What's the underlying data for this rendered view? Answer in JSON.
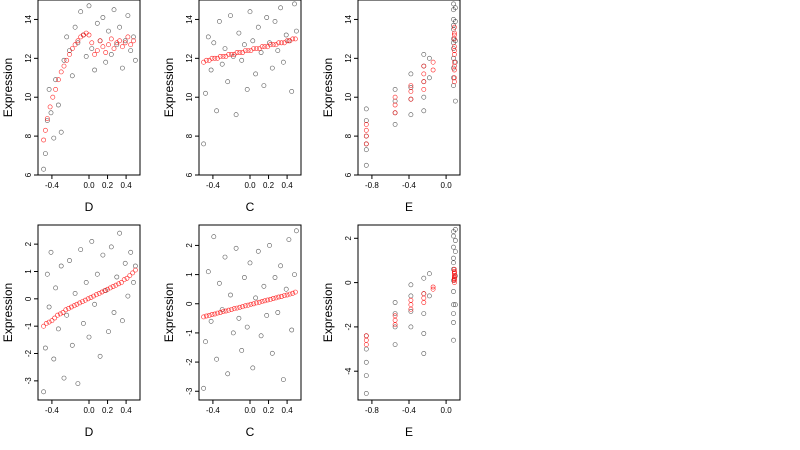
{
  "figure": {
    "colors": {
      "observed": "#000000",
      "fitted": "#ff0000",
      "background": "#ffffff"
    }
  },
  "chart_data": [
    {
      "type": "scatter",
      "row": "top",
      "xlabel": "D",
      "ylabel": "Expression",
      "xlim": [
        -0.55,
        0.55
      ],
      "ylim": [
        6,
        15
      ],
      "xticks": [
        -0.4,
        0.0,
        0.2,
        0.4
      ],
      "xtick_labels": [
        "-0.4",
        "0.0",
        "0.2",
        "0.4"
      ],
      "yticks": [
        6,
        8,
        10,
        12,
        14
      ],
      "ytick_labels": [
        "6",
        "8",
        "10",
        "12",
        "14"
      ],
      "grid": false,
      "legend": "none",
      "series": [
        {
          "color": "#000000",
          "x": [
            -0.49,
            -0.47,
            -0.45,
            -0.43,
            -0.41,
            -0.38,
            -0.36,
            -0.33,
            -0.3,
            -0.27,
            -0.24,
            -0.21,
            -0.18,
            -0.15,
            -0.12,
            -0.09,
            -0.06,
            -0.03,
            0.0,
            0.03,
            0.06,
            0.09,
            0.12,
            0.15,
            0.18,
            0.21,
            0.24,
            0.27,
            0.3,
            0.33,
            0.36,
            0.39,
            0.42,
            0.45,
            0.48,
            0.5
          ],
          "y": [
            6.3,
            7.1,
            8.8,
            10.4,
            9.2,
            7.9,
            10.9,
            9.6,
            8.2,
            11.9,
            13.1,
            12.4,
            11.1,
            13.6,
            12.8,
            14.4,
            13.2,
            12.1,
            14.7,
            12.5,
            11.4,
            13.8,
            12.9,
            14.1,
            11.8,
            13.4,
            12.2,
            14.5,
            12.7,
            13.6,
            11.5,
            12.9,
            14.2,
            12.4,
            13.1,
            11.9
          ]
        },
        {
          "color": "#ff0000",
          "x": [
            -0.49,
            -0.47,
            -0.45,
            -0.42,
            -0.39,
            -0.36,
            -0.33,
            -0.3,
            -0.27,
            -0.24,
            -0.21,
            -0.18,
            -0.15,
            -0.12,
            -0.09,
            -0.06,
            -0.03,
            0.0,
            0.03,
            0.06,
            0.09,
            0.12,
            0.15,
            0.18,
            0.21,
            0.24,
            0.27,
            0.3,
            0.33,
            0.36,
            0.39,
            0.42,
            0.45,
            0.48
          ],
          "y": [
            7.8,
            8.3,
            8.9,
            9.5,
            10.0,
            10.4,
            10.9,
            11.3,
            11.6,
            11.9,
            12.2,
            12.5,
            12.7,
            12.9,
            13.1,
            13.2,
            13.3,
            13.2,
            12.8,
            12.2,
            12.4,
            12.9,
            12.6,
            12.3,
            12.7,
            13.0,
            12.5,
            12.8,
            12.9,
            12.6,
            12.8,
            13.1,
            12.7,
            12.9
          ]
        }
      ]
    },
    {
      "type": "scatter",
      "row": "top",
      "xlabel": "C",
      "ylabel": "Expression",
      "xlim": [
        -0.55,
        0.55
      ],
      "ylim": [
        6,
        15
      ],
      "xticks": [
        -0.4,
        0.0,
        0.2,
        0.4
      ],
      "xtick_labels": [
        "-0.4",
        "0.0",
        "0.2",
        "0.4"
      ],
      "yticks": [
        6,
        8,
        10,
        12,
        14
      ],
      "ytick_labels": [
        "6",
        "8",
        "10",
        "12",
        "14"
      ],
      "grid": false,
      "legend": "none",
      "series": [
        {
          "color": "#000000",
          "x": [
            -0.5,
            -0.48,
            -0.45,
            -0.42,
            -0.39,
            -0.36,
            -0.33,
            -0.3,
            -0.27,
            -0.24,
            -0.21,
            -0.18,
            -0.15,
            -0.12,
            -0.09,
            -0.06,
            -0.03,
            0.0,
            0.03,
            0.06,
            0.09,
            0.12,
            0.15,
            0.18,
            0.21,
            0.24,
            0.27,
            0.3,
            0.33,
            0.36,
            0.39,
            0.42,
            0.45,
            0.48,
            0.5
          ],
          "y": [
            7.6,
            10.2,
            13.1,
            11.4,
            12.8,
            9.3,
            13.9,
            11.7,
            12.5,
            10.8,
            14.2,
            12.1,
            9.1,
            13.3,
            11.9,
            12.7,
            10.4,
            14.4,
            12.9,
            11.2,
            13.6,
            12.3,
            10.6,
            14.1,
            12.8,
            11.5,
            13.9,
            12.4,
            14.6,
            11.8,
            13.2,
            12.9,
            10.3,
            14.8,
            13.4
          ]
        },
        {
          "color": "#ff0000",
          "x": [
            -0.5,
            -0.47,
            -0.44,
            -0.41,
            -0.38,
            -0.35,
            -0.32,
            -0.29,
            -0.26,
            -0.23,
            -0.2,
            -0.17,
            -0.14,
            -0.11,
            -0.08,
            -0.05,
            -0.02,
            0.01,
            0.04,
            0.07,
            0.1,
            0.13,
            0.16,
            0.19,
            0.22,
            0.25,
            0.28,
            0.31,
            0.34,
            0.37,
            0.4,
            0.43,
            0.46,
            0.49
          ],
          "y": [
            11.8,
            11.9,
            11.9,
            12.0,
            12.0,
            12.0,
            12.1,
            12.1,
            12.1,
            12.2,
            12.2,
            12.2,
            12.3,
            12.3,
            12.3,
            12.4,
            12.4,
            12.4,
            12.5,
            12.5,
            12.5,
            12.6,
            12.6,
            12.6,
            12.7,
            12.7,
            12.7,
            12.8,
            12.8,
            12.8,
            12.9,
            12.9,
            13.0,
            13.0
          ]
        }
      ]
    },
    {
      "type": "scatter",
      "row": "top",
      "xlabel": "E",
      "ylabel": "Expression",
      "xlim": [
        -0.95,
        0.15
      ],
      "ylim": [
        6,
        15
      ],
      "xticks": [
        -0.8,
        -0.4,
        0.0
      ],
      "xtick_labels": [
        "-0.8",
        "-0.4",
        "0.0"
      ],
      "yticks": [
        6,
        8,
        10,
        12,
        14
      ],
      "ytick_labels": [
        "6",
        "8",
        "10",
        "12",
        "14"
      ],
      "grid": false,
      "legend": "none",
      "series": [
        {
          "color": "#000000",
          "x": [
            -0.86,
            -0.86,
            -0.86,
            -0.86,
            -0.86,
            -0.86,
            -0.55,
            -0.55,
            -0.55,
            -0.55,
            -0.38,
            -0.38,
            -0.38,
            -0.38,
            -0.24,
            -0.24,
            -0.24,
            -0.24,
            -0.24,
            -0.18,
            -0.18,
            0.08,
            0.08,
            0.08,
            0.08,
            0.08,
            0.08,
            0.08,
            0.08,
            0.08,
            0.08,
            0.08,
            0.08,
            0.1,
            0.1,
            0.1,
            0.1,
            0.1
          ],
          "y": [
            6.5,
            7.3,
            8.0,
            8.8,
            9.4,
            7.6,
            8.6,
            9.2,
            9.8,
            10.4,
            9.1,
            9.9,
            10.5,
            11.2,
            9.3,
            10.0,
            10.8,
            11.6,
            12.2,
            11.0,
            12.0,
            11.0,
            11.5,
            12.0,
            12.5,
            13.0,
            13.5,
            14.0,
            14.5,
            10.6,
            12.8,
            13.7,
            14.8,
            9.8,
            11.8,
            12.9,
            13.9,
            14.6
          ]
        },
        {
          "color": "#ff0000",
          "x": [
            -0.86,
            -0.86,
            -0.86,
            -0.86,
            -0.55,
            -0.55,
            -0.55,
            -0.38,
            -0.38,
            -0.38,
            -0.24,
            -0.24,
            -0.24,
            -0.24,
            -0.14,
            -0.14,
            0.09,
            0.09,
            0.09,
            0.09,
            0.09,
            0.09,
            0.09,
            0.09,
            0.09,
            0.09,
            0.09,
            0.09
          ],
          "y": [
            7.6,
            8.0,
            8.3,
            8.6,
            9.2,
            9.6,
            10.0,
            9.9,
            10.3,
            10.6,
            10.4,
            10.8,
            11.2,
            11.6,
            11.4,
            11.8,
            11.0,
            11.4,
            11.8,
            12.2,
            12.6,
            13.0,
            13.3,
            13.6,
            10.8,
            11.6,
            12.4,
            13.2
          ]
        }
      ]
    },
    {
      "type": "scatter",
      "row": "bottom",
      "xlabel": "D",
      "ylabel": "Expression",
      "xlim": [
        -0.55,
        0.55
      ],
      "ylim": [
        -3.7,
        2.7
      ],
      "xticks": [
        -0.4,
        0.0,
        0.2,
        0.4
      ],
      "xtick_labels": [
        "-0.4",
        "0.0",
        "0.2",
        "0.4"
      ],
      "yticks": [
        -3,
        -2,
        -1,
        0,
        1,
        2
      ],
      "ytick_labels": [
        "-3",
        "-2",
        "-1",
        "0",
        "1",
        "2"
      ],
      "grid": false,
      "legend": "none",
      "series": [
        {
          "color": "#000000",
          "x": [
            -0.49,
            -0.47,
            -0.45,
            -0.43,
            -0.41,
            -0.38,
            -0.36,
            -0.33,
            -0.3,
            -0.27,
            -0.24,
            -0.21,
            -0.18,
            -0.15,
            -0.12,
            -0.09,
            -0.06,
            -0.03,
            0.0,
            0.03,
            0.06,
            0.09,
            0.12,
            0.15,
            0.18,
            0.21,
            0.24,
            0.27,
            0.3,
            0.33,
            0.36,
            0.39,
            0.42,
            0.45,
            0.48,
            0.5
          ],
          "y": [
            -3.4,
            -1.8,
            0.9,
            -0.3,
            1.7,
            -2.2,
            0.4,
            -1.1,
            1.2,
            -2.9,
            -0.6,
            1.4,
            -1.7,
            0.2,
            -3.1,
            1.8,
            -0.9,
            0.6,
            -1.4,
            2.1,
            -0.2,
            0.9,
            -2.1,
            1.6,
            0.3,
            -1.2,
            1.9,
            -0.5,
            0.8,
            2.4,
            -0.8,
            1.3,
            0.1,
            1.7,
            0.6,
            1.2
          ]
        },
        {
          "color": "#ff0000",
          "x": [
            -0.49,
            -0.46,
            -0.43,
            -0.4,
            -0.37,
            -0.34,
            -0.31,
            -0.28,
            -0.25,
            -0.22,
            -0.19,
            -0.16,
            -0.13,
            -0.1,
            -0.07,
            -0.04,
            -0.01,
            0.02,
            0.05,
            0.08,
            0.11,
            0.14,
            0.17,
            0.2,
            0.23,
            0.26,
            0.29,
            0.32,
            0.35,
            0.38,
            0.41,
            0.44,
            0.47,
            0.5
          ],
          "y": [
            -1.0,
            -0.9,
            -0.85,
            -0.8,
            -0.7,
            -0.6,
            -0.55,
            -0.5,
            -0.4,
            -0.35,
            -0.3,
            -0.25,
            -0.2,
            -0.15,
            -0.1,
            -0.05,
            0.0,
            0.05,
            0.1,
            0.15,
            0.2,
            0.25,
            0.3,
            0.35,
            0.4,
            0.45,
            0.5,
            0.55,
            0.6,
            0.7,
            0.75,
            0.85,
            0.95,
            1.05
          ]
        }
      ]
    },
    {
      "type": "scatter",
      "row": "bottom",
      "xlabel": "C",
      "ylabel": "Expression",
      "xlim": [
        -0.55,
        0.55
      ],
      "ylim": [
        -3.3,
        2.7
      ],
      "xticks": [
        -0.4,
        0.0,
        0.2,
        0.4
      ],
      "xtick_labels": [
        "-0.4",
        "0.0",
        "0.2",
        "0.4"
      ],
      "yticks": [
        -3,
        -2,
        -1,
        0,
        1,
        2
      ],
      "ytick_labels": [
        "-3",
        "-2",
        "-1",
        "0",
        "1",
        "2"
      ],
      "grid": false,
      "legend": "none",
      "series": [
        {
          "color": "#000000",
          "x": [
            -0.5,
            -0.48,
            -0.45,
            -0.42,
            -0.39,
            -0.36,
            -0.33,
            -0.3,
            -0.27,
            -0.24,
            -0.21,
            -0.18,
            -0.15,
            -0.12,
            -0.09,
            -0.06,
            -0.03,
            0.0,
            0.03,
            0.06,
            0.09,
            0.12,
            0.15,
            0.18,
            0.21,
            0.24,
            0.27,
            0.3,
            0.33,
            0.36,
            0.39,
            0.42,
            0.45,
            0.48,
            0.5
          ],
          "y": [
            -2.9,
            -1.3,
            1.1,
            -0.6,
            2.3,
            -1.9,
            0.7,
            -0.2,
            1.6,
            -2.4,
            0.3,
            -1.0,
            1.9,
            -0.5,
            -1.6,
            0.9,
            -0.8,
            1.4,
            -2.2,
            0.2,
            1.8,
            -1.1,
            0.6,
            -0.4,
            2.0,
            -1.7,
            0.9,
            -0.3,
            1.3,
            -2.6,
            0.5,
            2.2,
            -0.9,
            1.0,
            2.5
          ]
        },
        {
          "color": "#ff0000",
          "x": [
            -0.5,
            -0.47,
            -0.44,
            -0.41,
            -0.38,
            -0.35,
            -0.32,
            -0.29,
            -0.26,
            -0.23,
            -0.2,
            -0.17,
            -0.14,
            -0.11,
            -0.08,
            -0.05,
            -0.02,
            0.01,
            0.04,
            0.07,
            0.1,
            0.13,
            0.16,
            0.19,
            0.22,
            0.25,
            0.28,
            0.31,
            0.34,
            0.37,
            0.4,
            0.43,
            0.46,
            0.49
          ],
          "y": [
            -0.45,
            -0.42,
            -0.4,
            -0.37,
            -0.35,
            -0.32,
            -0.3,
            -0.27,
            -0.25,
            -0.22,
            -0.2,
            -0.17,
            -0.15,
            -0.12,
            -0.1,
            -0.07,
            -0.05,
            -0.02,
            0.0,
            0.03,
            0.05,
            0.08,
            0.1,
            0.13,
            0.15,
            0.18,
            0.2,
            0.23,
            0.25,
            0.28,
            0.3,
            0.33,
            0.36,
            0.4
          ]
        }
      ]
    },
    {
      "type": "scatter",
      "row": "bottom",
      "xlabel": "E",
      "ylabel": "Expression",
      "xlim": [
        -0.95,
        0.15
      ],
      "ylim": [
        -5.3,
        2.6
      ],
      "xticks": [
        -0.8,
        -0.4,
        0.0
      ],
      "xtick_labels": [
        "-0.8",
        "-0.4",
        "0.0"
      ],
      "yticks": [
        -4,
        -2,
        0,
        2
      ],
      "ytick_labels": [
        "-4",
        "-2",
        "0",
        "2"
      ],
      "grid": false,
      "legend": "none",
      "series": [
        {
          "color": "#000000",
          "x": [
            -0.86,
            -0.86,
            -0.86,
            -0.86,
            -0.86,
            -0.55,
            -0.55,
            -0.55,
            -0.55,
            -0.38,
            -0.38,
            -0.38,
            -0.38,
            -0.24,
            -0.24,
            -0.24,
            -0.24,
            -0.24,
            -0.18,
            -0.18,
            0.08,
            0.08,
            0.08,
            0.08,
            0.08,
            0.08,
            0.08,
            0.08,
            0.08,
            0.08,
            0.08,
            0.08,
            0.1,
            0.1,
            0.1,
            0.1,
            0.1
          ],
          "y": [
            -5.0,
            -4.2,
            -3.6,
            -3.0,
            -2.4,
            -2.8,
            -2.0,
            -1.4,
            -0.9,
            -2.0,
            -1.3,
            -0.6,
            -0.1,
            -3.2,
            -2.3,
            -1.4,
            -0.5,
            0.2,
            -0.6,
            0.4,
            -2.6,
            -1.8,
            -1.0,
            -0.4,
            0.1,
            0.6,
            1.1,
            1.6,
            2.1,
            -1.4,
            0.9,
            2.3,
            -1.0,
            0.3,
            1.4,
            1.9,
            2.4
          ]
        },
        {
          "color": "#ff0000",
          "x": [
            -0.86,
            -0.86,
            -0.86,
            -0.55,
            -0.55,
            -0.55,
            -0.38,
            -0.38,
            -0.38,
            -0.24,
            -0.24,
            -0.24,
            -0.14,
            -0.14,
            0.09,
            0.09,
            0.09,
            0.09,
            0.09,
            0.09,
            0.09,
            0.09,
            0.09,
            0.09
          ],
          "y": [
            -2.8,
            -2.6,
            -2.4,
            -1.9,
            -1.7,
            -1.5,
            -1.2,
            -1.0,
            -0.8,
            -0.9,
            -0.7,
            -0.5,
            -0.3,
            -0.2,
            0.0,
            0.1,
            0.2,
            0.3,
            0.4,
            0.5,
            0.6,
            0.25,
            0.15,
            0.45
          ]
        }
      ]
    }
  ]
}
